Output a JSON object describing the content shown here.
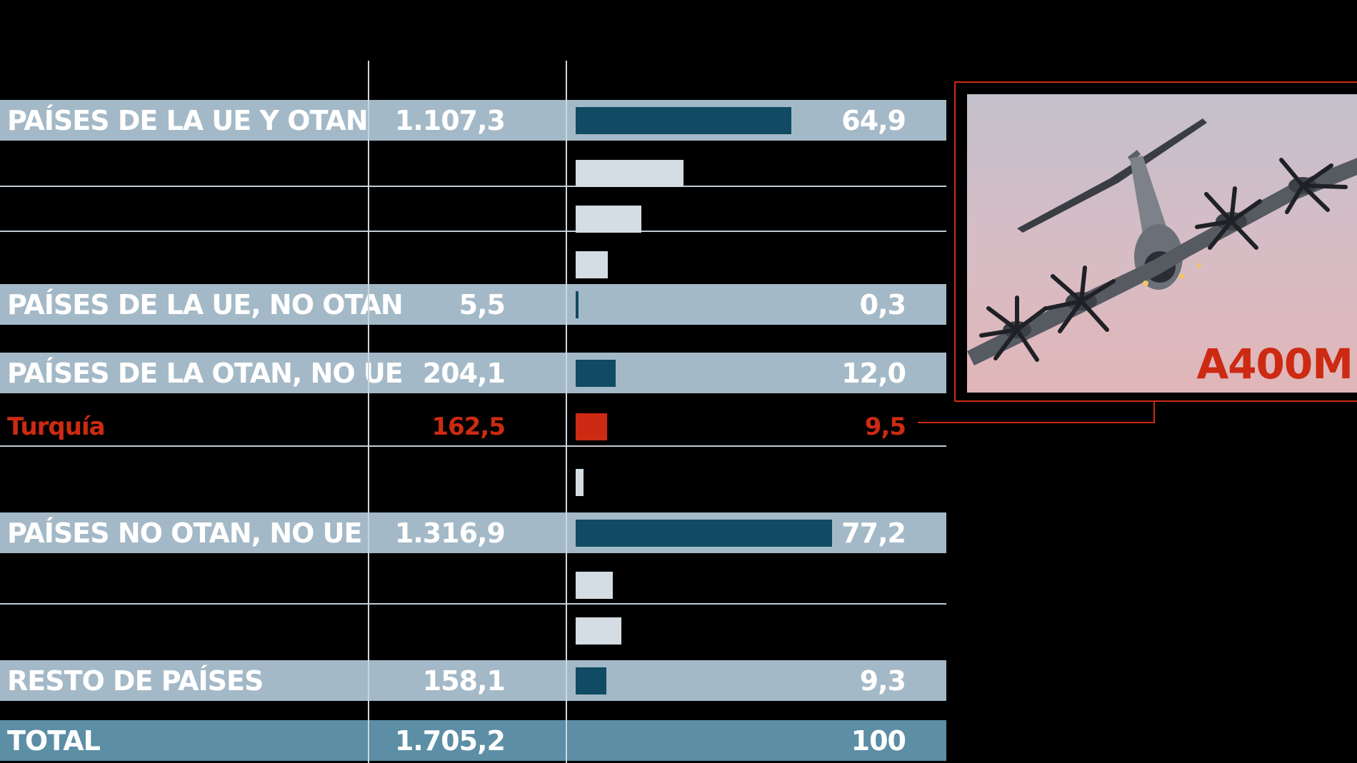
{
  "chart_data": {
    "type": "table",
    "columns": [
      "",
      "",
      ""
    ],
    "rows": [
      {
        "label": "PAÍSES DE LA UE Y OTAN",
        "value": "1.107,3",
        "pct_label": "64,9",
        "pct": 64.9,
        "style": "band",
        "bar": "dark"
      },
      {
        "label": "",
        "value": "",
        "pct_label": "",
        "pct": 32.5,
        "style": "plain",
        "bar": "light"
      },
      {
        "label": "",
        "value": "",
        "pct_label": "",
        "pct": 19.7,
        "style": "plain",
        "bar": "light"
      },
      {
        "label": "",
        "value": "",
        "pct_label": "",
        "pct": 9.6,
        "style": "plain",
        "bar": "light"
      },
      {
        "label": "PAÍSES DE LA UE, NO OTAN",
        "value": "5,5",
        "pct_label": "0,3",
        "pct": 0.3,
        "style": "band",
        "bar": "dark"
      },
      {
        "label": "PAÍSES DE LA OTAN, NO UE",
        "value": "204,1",
        "pct_label": "12,0",
        "pct": 12.0,
        "style": "band",
        "bar": "dark"
      },
      {
        "label": "Turquía",
        "value": "162,5",
        "pct_label": "9,5",
        "pct": 9.5,
        "style": "red",
        "bar": "red"
      },
      {
        "label": "",
        "value": "",
        "pct_label": "",
        "pct": 2.3,
        "style": "plain",
        "bar": "light"
      },
      {
        "label": "PAÍSES NO OTAN, NO UE",
        "value": "1.316,9",
        "pct_label": "77,2",
        "pct": 77.2,
        "style": "band",
        "bar": "dark"
      },
      {
        "label": "",
        "value": "",
        "pct_label": "",
        "pct": 11.2,
        "style": "plain",
        "bar": "light"
      },
      {
        "label": "",
        "value": "",
        "pct_label": "",
        "pct": 13.8,
        "style": "plain",
        "bar": "light"
      },
      {
        "label": "RESTO DE PAÍSES",
        "value": "158,1",
        "pct_label": "9,3",
        "pct": 9.3,
        "style": "band",
        "bar": "dark"
      },
      {
        "label": "TOTAL",
        "value": "1.705,2",
        "pct_label": "100",
        "pct": null,
        "style": "total",
        "bar": "none"
      }
    ],
    "pct_scale_max": 100
  },
  "photo": {
    "caption": "A400M",
    "subject": "military transport aircraft",
    "accent": "#cc2a12"
  },
  "colors": {
    "band": "#a4b9c7",
    "total_band": "#5c8ea5",
    "dark_bar": "#104a63",
    "light_bar": "#d3dde3",
    "highlight": "#cc2a12"
  }
}
